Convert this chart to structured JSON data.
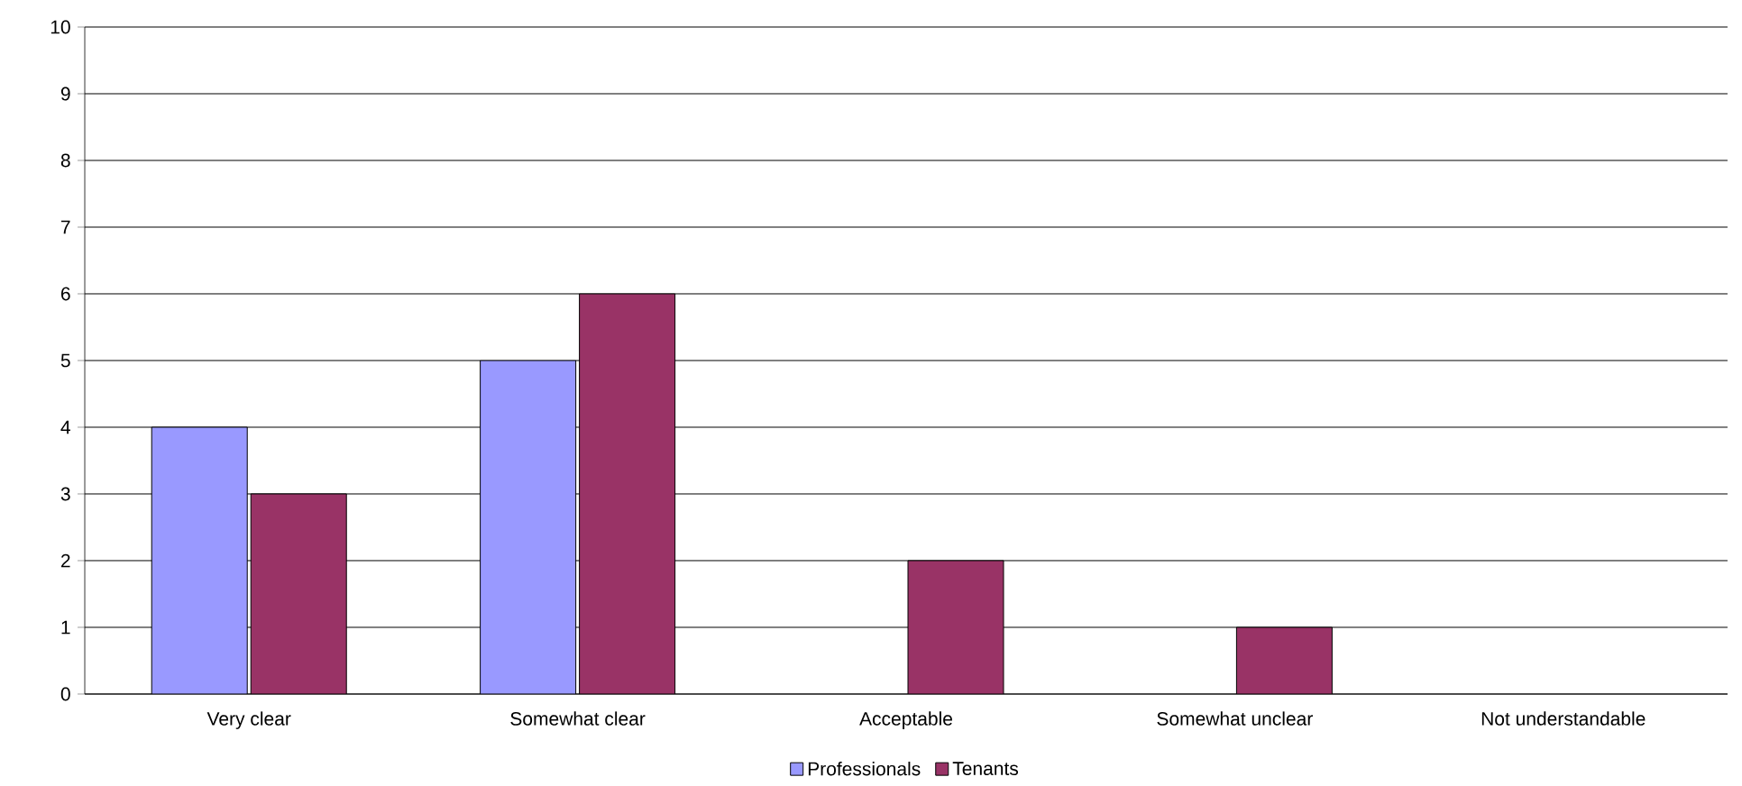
{
  "chart_data": {
    "type": "bar",
    "categories": [
      "Very clear",
      "Somewhat clear",
      "Acceptable",
      "Somewhat unclear",
      "Not understandable"
    ],
    "series": [
      {
        "name": "Professionals",
        "color": "#9999ff",
        "values": [
          4,
          5,
          null,
          null,
          null
        ]
      },
      {
        "name": "Tenants",
        "color": "#993366",
        "values": [
          3,
          6,
          2,
          1,
          null
        ]
      }
    ],
    "ylim": [
      0,
      10
    ],
    "yticks": [
      0,
      1,
      2,
      3,
      4,
      5,
      6,
      7,
      8,
      9,
      10
    ],
    "grid": "y",
    "legend": "bottom"
  }
}
